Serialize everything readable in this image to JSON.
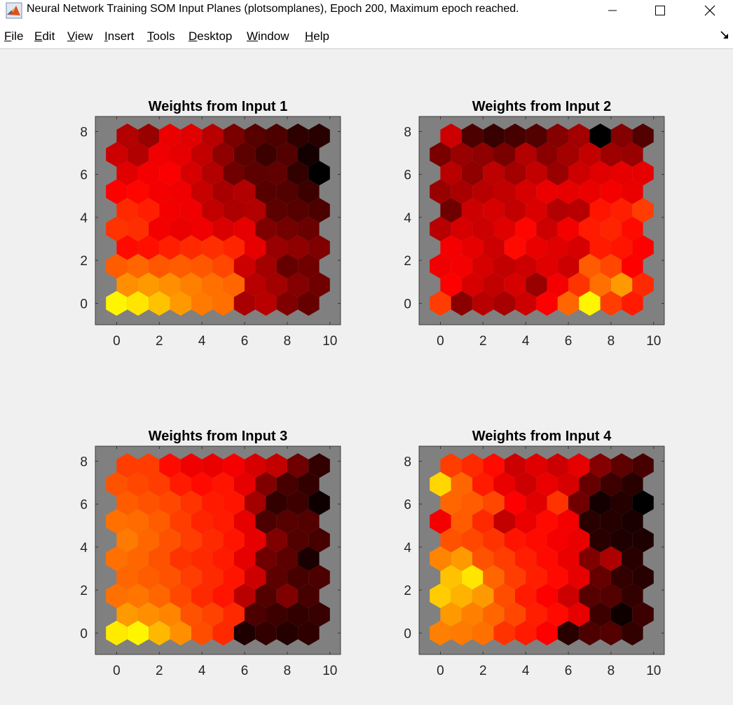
{
  "window": {
    "title": "Neural Network Training SOM Input Planes (plotsomplanes), Epoch 200, Maximum epoch reached.",
    "icon": "matlab-icon",
    "controls": [
      "minimize-icon",
      "maximize-icon",
      "close-icon"
    ]
  },
  "menu": {
    "items": [
      {
        "first": "F",
        "rest": "ile"
      },
      {
        "first": "E",
        "rest": "dit"
      },
      {
        "first": "V",
        "rest": "iew"
      },
      {
        "first": "I",
        "rest": "nsert"
      },
      {
        "first": "T",
        "rest": "ools"
      },
      {
        "first": "D",
        "rest": "esktop"
      },
      {
        "first": "W",
        "rest": "indow"
      },
      {
        "first": "H",
        "rest": "elp"
      }
    ],
    "dock_icon": "dock-arrow-icon"
  },
  "chart_data": [
    {
      "type": "heatmap",
      "title": "Weights from Input 1",
      "xlim": [
        -1,
        10.5
      ],
      "ylim": [
        -1,
        8.7
      ],
      "xticks": [
        0,
        2,
        4,
        6,
        8,
        10
      ],
      "yticks": [
        0,
        2,
        4,
        6,
        8
      ],
      "grid": "hexagonal 10x10",
      "background_color": "#808080",
      "colormap": [
        "#000000",
        "#ff0000",
        "#ffff00"
      ],
      "values": [
        [
          0.98,
          0.95,
          0.88,
          0.8,
          0.74,
          0.72,
          0.33,
          0.36,
          0.25,
          0.2
        ],
        [
          0.78,
          0.8,
          0.78,
          0.75,
          0.72,
          0.7,
          0.36,
          0.32,
          0.26,
          0.22
        ],
        [
          0.68,
          0.7,
          0.67,
          0.68,
          0.67,
          0.64,
          0.4,
          0.32,
          0.2,
          0.22
        ],
        [
          0.52,
          0.53,
          0.56,
          0.58,
          0.59,
          0.57,
          0.45,
          0.3,
          0.28,
          0.25
        ],
        [
          0.6,
          0.59,
          0.48,
          0.46,
          0.47,
          0.43,
          0.45,
          0.25,
          0.23,
          0.21
        ],
        [
          0.58,
          0.56,
          0.48,
          0.47,
          0.38,
          0.34,
          0.35,
          0.18,
          0.17,
          0.15
        ],
        [
          0.5,
          0.51,
          0.48,
          0.47,
          0.39,
          0.33,
          0.35,
          0.17,
          0.16,
          0.12
        ],
        [
          0.44,
          0.48,
          0.49,
          0.42,
          0.35,
          0.22,
          0.18,
          0.19,
          0.1,
          0.0
        ],
        [
          0.4,
          0.35,
          0.47,
          0.45,
          0.38,
          0.28,
          0.18,
          0.12,
          0.16,
          0.04
        ],
        [
          0.35,
          0.3,
          0.46,
          0.44,
          0.36,
          0.24,
          0.17,
          0.15,
          0.09,
          0.08
        ]
      ]
    },
    {
      "type": "heatmap",
      "title": "Weights from Input 2",
      "xlim": [
        -1,
        10.5
      ],
      "ylim": [
        -1,
        8.7
      ],
      "xticks": [
        0,
        2,
        4,
        6,
        8,
        10
      ],
      "yticks": [
        0,
        2,
        4,
        6,
        8
      ],
      "grid": "hexagonal 10x10",
      "background_color": "#808080",
      "colormap": [
        "#000000",
        "#ff0000",
        "#ffff00"
      ],
      "values": [
        [
          0.62,
          0.27,
          0.36,
          0.33,
          0.4,
          0.5,
          0.7,
          0.98,
          0.62,
          0.55
        ],
        [
          0.5,
          0.42,
          0.38,
          0.42,
          0.3,
          0.48,
          0.6,
          0.72,
          0.8,
          0.58
        ],
        [
          0.47,
          0.48,
          0.42,
          0.38,
          0.4,
          0.44,
          0.4,
          0.68,
          0.64,
          0.5
        ],
        [
          0.48,
          0.45,
          0.4,
          0.52,
          0.46,
          0.44,
          0.42,
          0.55,
          0.54,
          0.5
        ],
        [
          0.36,
          0.42,
          0.4,
          0.44,
          0.51,
          0.4,
          0.48,
          0.55,
          0.57,
          0.52
        ],
        [
          0.22,
          0.4,
          0.42,
          0.38,
          0.43,
          0.35,
          0.36,
          0.54,
          0.56,
          0.62
        ],
        [
          0.3,
          0.33,
          0.36,
          0.38,
          0.42,
          0.46,
          0.45,
          0.46,
          0.48,
          0.46
        ],
        [
          0.36,
          0.28,
          0.37,
          0.32,
          0.38,
          0.3,
          0.4,
          0.44,
          0.45,
          0.45
        ],
        [
          0.24,
          0.3,
          0.28,
          0.24,
          0.35,
          0.27,
          0.32,
          0.38,
          0.31,
          0.3
        ],
        [
          0.4,
          0.15,
          0.11,
          0.14,
          0.16,
          0.26,
          0.32,
          0.0,
          0.26,
          0.16
        ]
      ]
    },
    {
      "type": "heatmap",
      "title": "Weights from Input 3",
      "xlim": [
        -1,
        10.5
      ],
      "ylim": [
        -1,
        8.7
      ],
      "xticks": [
        0,
        2,
        4,
        6,
        8,
        10
      ],
      "yticks": [
        0,
        2,
        4,
        6,
        8
      ],
      "grid": "hexagonal 10x10",
      "background_color": "#808080",
      "colormap": [
        "#000000",
        "#ff0000",
        "#ffff00"
      ],
      "values": [
        [
          0.96,
          0.98,
          0.86,
          0.78,
          0.65,
          0.58,
          0.06,
          0.1,
          0.07,
          0.09
        ],
        [
          0.8,
          0.78,
          0.76,
          0.66,
          0.63,
          0.58,
          0.15,
          0.12,
          0.1,
          0.11
        ],
        [
          0.72,
          0.73,
          0.7,
          0.64,
          0.58,
          0.54,
          0.36,
          0.16,
          0.25,
          0.14
        ],
        [
          0.7,
          0.68,
          0.66,
          0.62,
          0.58,
          0.54,
          0.4,
          0.18,
          0.14,
          0.15
        ],
        [
          0.72,
          0.7,
          0.66,
          0.6,
          0.58,
          0.55,
          0.45,
          0.22,
          0.18,
          0.05
        ],
        [
          0.74,
          0.7,
          0.66,
          0.62,
          0.58,
          0.54,
          0.45,
          0.25,
          0.16,
          0.14
        ],
        [
          0.72,
          0.71,
          0.68,
          0.62,
          0.57,
          0.55,
          0.45,
          0.15,
          0.17,
          0.16
        ],
        [
          0.68,
          0.66,
          0.64,
          0.6,
          0.55,
          0.54,
          0.32,
          0.1,
          0.12,
          0.03
        ],
        [
          0.66,
          0.64,
          0.62,
          0.55,
          0.52,
          0.54,
          0.45,
          0.25,
          0.14,
          0.1
        ],
        [
          0.62,
          0.62,
          0.52,
          0.47,
          0.46,
          0.48,
          0.42,
          0.38,
          0.22,
          0.1
        ]
      ]
    },
    {
      "type": "heatmap",
      "title": "Weights from Input 4",
      "xlim": [
        -1,
        10.5
      ],
      "ylim": [
        -1,
        8.7
      ],
      "xticks": [
        0,
        2,
        4,
        6,
        8,
        10
      ],
      "yticks": [
        0,
        2,
        4,
        6,
        8
      ],
      "grid": "hexagonal 10x10",
      "background_color": "#808080",
      "colormap": [
        "#000000",
        "#ff0000",
        "#ffff00"
      ],
      "values": [
        [
          0.75,
          0.74,
          0.72,
          0.6,
          0.55,
          0.5,
          0.08,
          0.15,
          0.16,
          0.1
        ],
        [
          0.8,
          0.75,
          0.7,
          0.64,
          0.56,
          0.52,
          0.45,
          0.12,
          0.03,
          0.12
        ],
        [
          0.9,
          0.85,
          0.8,
          0.65,
          0.55,
          0.5,
          0.4,
          0.17,
          0.16,
          0.1
        ],
        [
          0.88,
          0.95,
          0.7,
          0.62,
          0.56,
          0.52,
          0.45,
          0.2,
          0.1,
          0.08
        ],
        [
          0.76,
          0.8,
          0.66,
          0.62,
          0.56,
          0.52,
          0.46,
          0.25,
          0.34,
          0.08
        ],
        [
          0.66,
          0.64,
          0.6,
          0.54,
          0.52,
          0.48,
          0.46,
          0.08,
          0.06,
          0.06
        ],
        [
          0.48,
          0.68,
          0.58,
          0.38,
          0.46,
          0.52,
          0.48,
          0.08,
          0.07,
          0.05
        ],
        [
          0.7,
          0.68,
          0.64,
          0.5,
          0.44,
          0.6,
          0.22,
          0.04,
          0.07,
          0.0
        ],
        [
          0.92,
          0.7,
          0.55,
          0.46,
          0.4,
          0.46,
          0.42,
          0.2,
          0.12,
          0.08
        ],
        [
          0.62,
          0.58,
          0.52,
          0.4,
          0.44,
          0.4,
          0.45,
          0.26,
          0.18,
          0.14
        ]
      ]
    }
  ]
}
